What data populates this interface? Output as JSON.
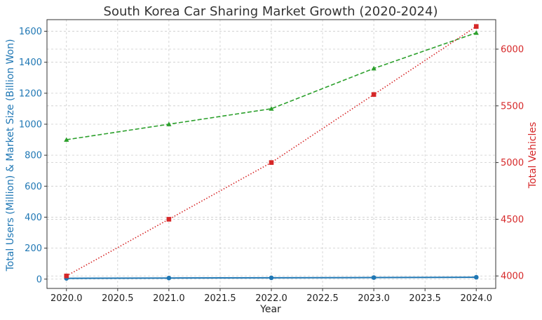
{
  "chart_data": {
    "type": "line",
    "title": "South Korea Car Sharing Market Growth (2020-2024)",
    "xlabel": "Year",
    "ylabel_left": "Total Users (Million) & Market Size (Billion Won)",
    "ylabel_right": "Total Vehicles",
    "x": [
      2020,
      2021,
      2022,
      2023,
      2024
    ],
    "xlim": [
      2019.81,
      2024.19
    ],
    "xticks": [
      "2020.0",
      "2020.5",
      "2021.0",
      "2021.5",
      "2022.0",
      "2022.5",
      "2023.0",
      "2023.5",
      "2024.0"
    ],
    "ylim_left": [
      -60,
      1675
    ],
    "yticks_left": [
      "0",
      "200",
      "400",
      "600",
      "800",
      "1000",
      "1200",
      "1400",
      "1600"
    ],
    "ylim_right": [
      3890,
      6260
    ],
    "yticks_right": [
      "4000",
      "4500",
      "5000",
      "5500",
      "6000"
    ],
    "grid": true,
    "series": [
      {
        "axis": "left",
        "color": "#1f77b4",
        "marker": "circle",
        "linestyle": "solid",
        "values": [
          5,
          7,
          8.5,
          10,
          12
        ]
      },
      {
        "axis": "left",
        "color": "#2ca02c",
        "marker": "triangle",
        "linestyle": "dashed",
        "values": [
          900,
          1000,
          1100,
          1360,
          1590
        ]
      },
      {
        "axis": "right",
        "color": "#d62728",
        "marker": "square",
        "linestyle": "dotted",
        "values": [
          4000,
          4500,
          5000,
          5600,
          6200
        ]
      }
    ],
    "colors": {
      "left_axis": "#1f77b4",
      "right_axis": "#d62728",
      "grid": "#cccccc",
      "frame": "#333333"
    }
  }
}
